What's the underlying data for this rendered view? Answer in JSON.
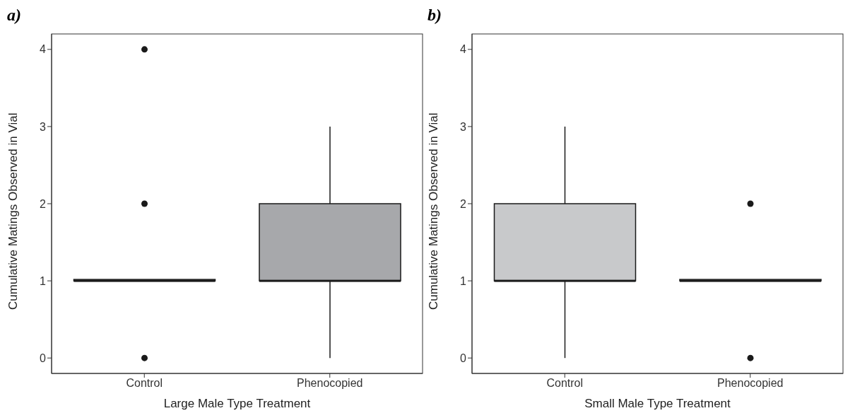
{
  "chart_data": [
    {
      "type": "box",
      "title": "a)",
      "xlabel": "Large Male Type Treatment",
      "ylabel": "Cumulative Matings Observed in Vial",
      "categories": [
        "Control",
        "Phenocopied"
      ],
      "colors": [
        "#a7a8ab",
        "#a7a8ab"
      ],
      "ylim": [
        -0.2,
        4.2
      ],
      "yticks": [
        0,
        1,
        2,
        3,
        4
      ],
      "grid": false,
      "marker": "circle",
      "boxes": [
        {
          "low": 1,
          "q1": 1,
          "median": 1,
          "q3": 1,
          "high": 1,
          "outliers": [
            0,
            2,
            4
          ]
        },
        {
          "low": 0,
          "q1": 1,
          "median": 1,
          "q3": 2,
          "high": 3
        }
      ]
    },
    {
      "type": "box",
      "title": "b)",
      "xlabel": "Small Male Type Treatment",
      "ylabel": "Cumulative Matings Observed in Vial",
      "categories": [
        "Control",
        "Phenocopied"
      ],
      "colors": [
        "#c8c9cb",
        "#c8c9cb"
      ],
      "ylim": [
        -0.2,
        4.2
      ],
      "yticks": [
        0,
        1,
        2,
        3,
        4
      ],
      "grid": false,
      "marker": "circle",
      "boxes": [
        {
          "low": 0,
          "q1": 1,
          "median": 1,
          "q3": 2,
          "high": 3
        },
        {
          "low": 1,
          "q1": 1,
          "median": 1,
          "q3": 1,
          "high": 1,
          "outliers": [
            0,
            2
          ]
        }
      ]
    }
  ]
}
